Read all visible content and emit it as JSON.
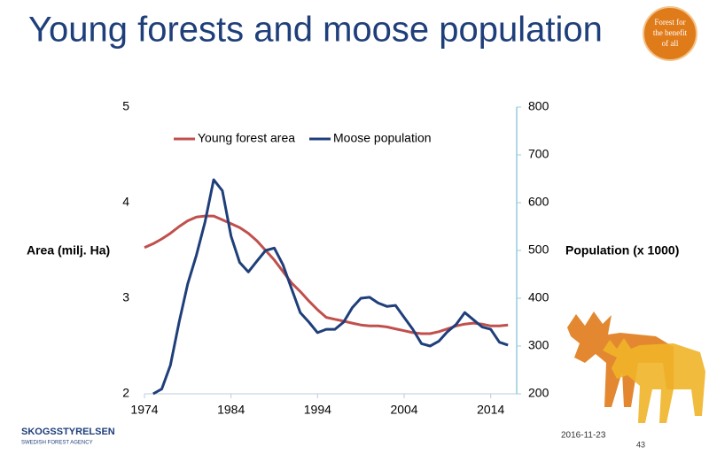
{
  "title": "Young forests and moose population",
  "badge": [
    "Forest for",
    "the benefit",
    "of all"
  ],
  "logo": {
    "name": "SKOGSSTYRELSEN",
    "subtitle": "SWEDISH FOREST AGENCY"
  },
  "date": "2016-11-23",
  "page": "43",
  "chart_data": {
    "type": "line",
    "ylabel": "Area (milj. Ha)",
    "y2label": "Population (x 1000)",
    "x": [
      1974,
      1975,
      1976,
      1977,
      1978,
      1979,
      1980,
      1981,
      1982,
      1983,
      1984,
      1985,
      1986,
      1987,
      1988,
      1989,
      1990,
      1991,
      1992,
      1993,
      1994,
      1995,
      1996,
      1997,
      1998,
      1999,
      2000,
      2001,
      2002,
      2003,
      2004,
      2005,
      2006,
      2007,
      2008,
      2009,
      2010,
      2011,
      2012,
      2013,
      2014,
      2015,
      2016
    ],
    "series": [
      {
        "name": "Young forest area",
        "color": "#c0504d",
        "values": [
          3.53,
          3.57,
          3.62,
          3.68,
          3.75,
          3.81,
          3.85,
          3.86,
          3.86,
          3.82,
          3.78,
          3.74,
          3.68,
          3.6,
          3.5,
          3.4,
          3.28,
          3.16,
          3.07,
          2.97,
          2.88,
          2.8,
          2.78,
          2.76,
          2.74,
          2.72,
          2.71,
          2.71,
          2.7,
          2.68,
          2.66,
          2.64,
          2.63,
          2.63,
          2.65,
          2.68,
          2.71,
          2.73,
          2.74,
          2.73,
          2.71,
          2.71,
          2.72
        ]
      },
      {
        "name": "Moose population",
        "color": "#1f3f7a",
        "axis": "y2",
        "values": [
          null,
          200,
          210,
          260,
          350,
          430,
          490,
          560,
          648,
          625,
          530,
          475,
          455,
          478,
          500,
          505,
          470,
          420,
          370,
          350,
          328,
          335,
          335,
          350,
          380,
          400,
          402,
          390,
          383,
          385,
          360,
          335,
          305,
          300,
          310,
          330,
          345,
          370,
          355,
          340,
          335,
          308,
          302
        ]
      }
    ],
    "xlim": [
      1974,
      2017
    ],
    "xticks": [
      1974,
      1984,
      1994,
      2004,
      2014
    ],
    "ylim": [
      2,
      5
    ],
    "yticks": [
      2,
      3,
      4,
      5
    ],
    "y2lim": [
      200,
      800
    ],
    "y2ticks": [
      200,
      300,
      400,
      500,
      600,
      700,
      800
    ],
    "legend": "top"
  }
}
